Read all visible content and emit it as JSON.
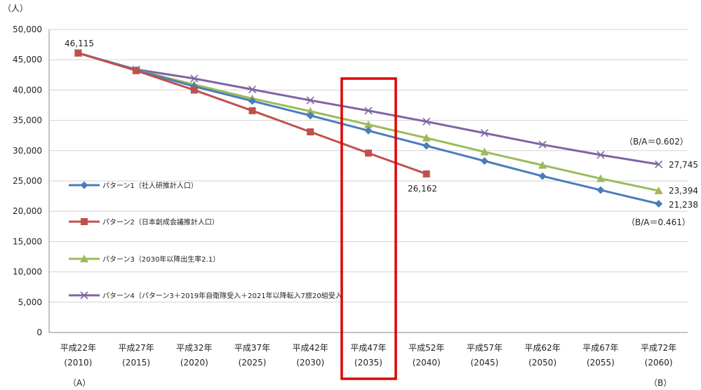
{
  "chart_data": {
    "type": "line",
    "unit_label": "（人）",
    "ylim": [
      0,
      50000
    ],
    "yticks": [
      "0",
      "5,000",
      "10,000",
      "15,000",
      "20,000",
      "25,000",
      "30,000",
      "35,000",
      "40,000",
      "45,000",
      "50,000"
    ],
    "grid": true,
    "categories": [
      {
        "era": "平成22年",
        "year": "(2010)"
      },
      {
        "era": "平成27年",
        "year": "(2015)"
      },
      {
        "era": "平成32年",
        "year": "(2020)"
      },
      {
        "era": "平成37年",
        "year": "(2025)"
      },
      {
        "era": "平成42年",
        "year": "(2030)"
      },
      {
        "era": "平成47年",
        "year": "(2035)"
      },
      {
        "era": "平成52年",
        "year": "(2040)"
      },
      {
        "era": "平成57年",
        "year": "(2045)"
      },
      {
        "era": "平成62年",
        "year": "(2050)"
      },
      {
        "era": "平成67年",
        "year": "(2055)"
      },
      {
        "era": "平成72年",
        "year": "(2060)"
      }
    ],
    "series": [
      {
        "name": "パターン1（社人研推計人口）",
        "color": "#4a7ebb",
        "marker": "diamond",
        "values": [
          46115,
          43300,
          40600,
          38200,
          35800,
          33300,
          30800,
          28300,
          25800,
          23500,
          21238
        ]
      },
      {
        "name": "パターン2（日本創成会議推計人口）",
        "color": "#c0504d",
        "marker": "square",
        "values": [
          46115,
          43200,
          40000,
          36600,
          33100,
          29600,
          26162,
          null,
          null,
          null,
          null
        ]
      },
      {
        "name": "パターン3（2030年以降出生率2.1）",
        "color": "#9bbb59",
        "marker": "triangle",
        "values": [
          46115,
          43300,
          40900,
          38600,
          36500,
          34300,
          32100,
          29800,
          27600,
          25400,
          23394
        ]
      },
      {
        "name": "パターン4（パターン3＋2019年自衛隊受入＋2021年以降転入7旅20組受入",
        "color": "#8064a2",
        "marker": "x",
        "values": [
          46115,
          43400,
          41900,
          40100,
          38300,
          36600,
          34800,
          32900,
          31000,
          29300,
          27745
        ]
      }
    ],
    "annotations": {
      "start_value": "46,115",
      "p2_end_value": "26,162",
      "p4_end_value": "27,745",
      "p3_end_value": "23,394",
      "p1_end_value": "21,238",
      "ratio_p4": "（B/A＝0.602）",
      "ratio_p1": "（B/A＝0.461）",
      "marker_a": "（A）",
      "marker_b": "（B）"
    },
    "highlight_category": "平成47年"
  }
}
